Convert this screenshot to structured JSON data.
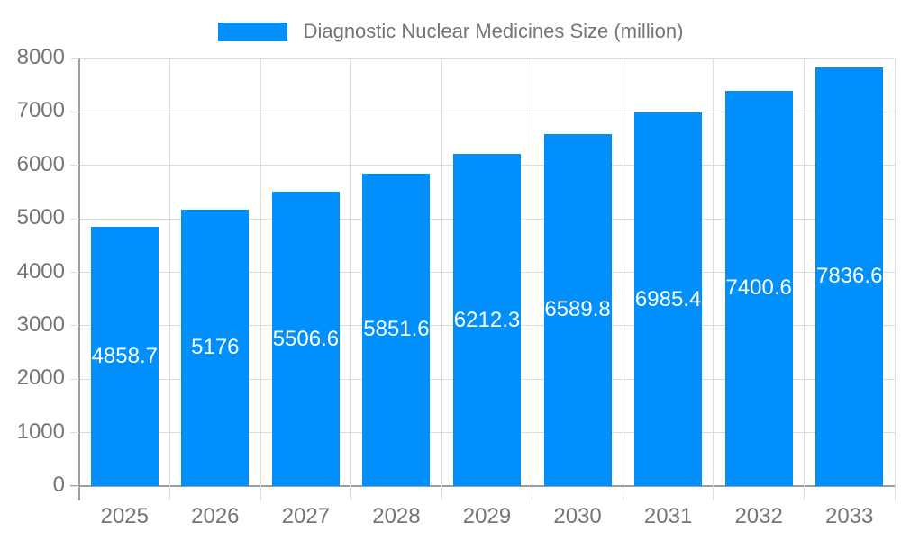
{
  "chart_data": {
    "type": "bar",
    "title": "",
    "legend": {
      "label": "Diagnostic Nuclear Medicines Size (million)",
      "position": "top"
    },
    "categories": [
      "2025",
      "2026",
      "2027",
      "2028",
      "2029",
      "2030",
      "2031",
      "2032",
      "2033"
    ],
    "series": [
      {
        "name": "Diagnostic Nuclear Medicines Size (million)",
        "values": [
          4858.7,
          5176,
          5506.6,
          5851.6,
          6212.3,
          6589.8,
          6985.4,
          7400.6,
          7836.6
        ],
        "labels": [
          "4858.7",
          "5176",
          "5506.6",
          "5851.6",
          "6212.3",
          "6589.8",
          "6985.4",
          "7400.6",
          "7836.6"
        ]
      }
    ],
    "xlabel": "",
    "ylabel": "",
    "ylim": [
      0,
      8000
    ],
    "yticks": [
      0,
      1000,
      2000,
      3000,
      4000,
      5000,
      6000,
      7000,
      8000
    ],
    "grid": true,
    "bar_label_position": "center"
  },
  "colors": {
    "bar": "#008FFB",
    "axis_text": "#757575",
    "gridline": "#dcdcdc",
    "axis_line": "#9e9e9e",
    "bar_label": "#ffffff",
    "background": "#ffffff"
  }
}
